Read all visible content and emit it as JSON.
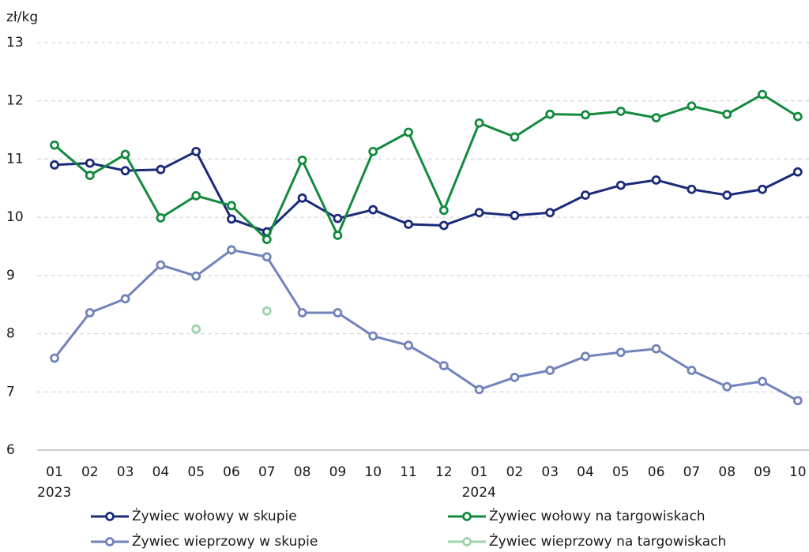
{
  "chart_data": {
    "type": "line",
    "y_label": "zł/kg",
    "categories": [
      "01",
      "02",
      "03",
      "04",
      "05",
      "06",
      "07",
      "08",
      "09",
      "10",
      "11",
      "12",
      "01",
      "02",
      "03",
      "04",
      "05",
      "06",
      "07",
      "08",
      "09",
      "10"
    ],
    "category_years": [
      "2023",
      null,
      null,
      null,
      null,
      null,
      null,
      null,
      null,
      null,
      null,
      null,
      "2024",
      null,
      null,
      null,
      null,
      null,
      null,
      null,
      null,
      null
    ],
    "ylim": [
      6,
      13
    ],
    "yticks": [
      6,
      7,
      8,
      9,
      10,
      11,
      12,
      13
    ],
    "grid": true,
    "series": [
      {
        "name": "Żywiec wołowy w skupie",
        "color": "#1b2a7a",
        "values": [
          10.9,
          10.93,
          10.8,
          10.82,
          11.13,
          9.97,
          9.75,
          10.33,
          9.98,
          10.13,
          9.88,
          9.86,
          10.08,
          10.03,
          10.08,
          10.38,
          10.55,
          10.64,
          10.48,
          10.38,
          10.48,
          10.78
        ]
      },
      {
        "name": "Żywiec wołowy na targowiskach",
        "color": "#138a3e",
        "values": [
          11.24,
          10.72,
          11.08,
          9.99,
          10.37,
          10.2,
          9.62,
          10.98,
          9.69,
          11.13,
          11.46,
          10.12,
          11.62,
          11.38,
          11.77,
          11.76,
          11.82,
          11.71,
          11.91,
          11.77,
          12.11,
          11.73
        ]
      },
      {
        "name": "Żywiec wieprzowy w skupie",
        "color": "#7282bb",
        "values": [
          7.58,
          8.36,
          8.6,
          9.18,
          8.99,
          9.44,
          9.32,
          8.36,
          8.36,
          7.96,
          7.8,
          7.45,
          7.04,
          7.25,
          7.37,
          7.61,
          7.68,
          7.74,
          7.37,
          7.09,
          7.18,
          6.85
        ]
      },
      {
        "name": "Żywiec wieprzowy na targowiskach",
        "color": "#9fd3ad",
        "values": [
          null,
          null,
          null,
          null,
          8.08,
          null,
          8.39,
          null,
          null,
          null,
          null,
          null,
          null,
          null,
          null,
          null,
          null,
          null,
          null,
          null,
          null,
          null
        ]
      }
    ]
  }
}
